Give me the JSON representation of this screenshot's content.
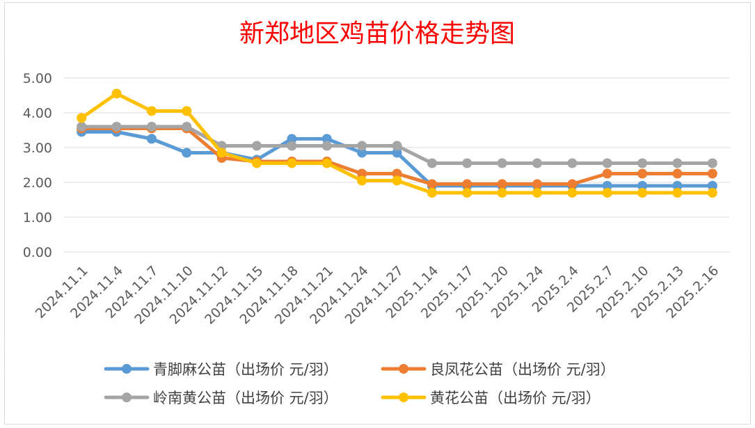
{
  "chart_data": {
    "type": "line",
    "title": "新郑地区鸡苗价格走势图",
    "xlabel": "",
    "ylabel": "",
    "ylim": [
      0,
      5
    ],
    "yticks": [
      "0.00",
      "1.00",
      "2.00",
      "3.00",
      "4.00",
      "5.00"
    ],
    "grid": true,
    "legend_position": "bottom",
    "categories": [
      "2024.11.1",
      "2024.11.4",
      "2024.11.7",
      "2024.11.10",
      "2024.11.12",
      "2024.11.15",
      "2024.11.18",
      "2024.11.21",
      "2024.11.24",
      "2024.11.27",
      "2025.1.14",
      "2025.1.17",
      "2025.1.20",
      "2025.1.24",
      "2025.2.4",
      "2025.2.7",
      "2025.2.10",
      "2025.2.13",
      "2025.2.16"
    ],
    "series": [
      {
        "name": "青脚麻公苗（出场价 元/羽）",
        "color": "#5b9bd5",
        "values": [
          3.45,
          3.45,
          3.25,
          2.85,
          2.85,
          2.65,
          3.25,
          3.25,
          2.85,
          2.85,
          1.9,
          1.9,
          1.9,
          1.9,
          1.9,
          1.9,
          1.9,
          1.9,
          1.9
        ]
      },
      {
        "name": "良凤花公苗（出场价 元/羽）",
        "color": "#ed7d31",
        "values": [
          3.55,
          3.55,
          3.55,
          3.55,
          2.7,
          2.6,
          2.6,
          2.6,
          2.25,
          2.25,
          1.95,
          1.95,
          1.95,
          1.95,
          1.95,
          2.25,
          2.25,
          2.25,
          2.25
        ]
      },
      {
        "name": "岭南黄公苗（出场价 元/羽）",
        "color": "#a5a5a5",
        "values": [
          3.6,
          3.6,
          3.6,
          3.6,
          3.05,
          3.05,
          3.05,
          3.05,
          3.05,
          3.05,
          2.55,
          2.55,
          2.55,
          2.55,
          2.55,
          2.55,
          2.55,
          2.55,
          2.55
        ]
      },
      {
        "name": "黄花公苗（出场价 元/羽）",
        "color": "#ffc000",
        "values": [
          3.85,
          4.55,
          4.05,
          4.05,
          2.85,
          2.55,
          2.55,
          2.55,
          2.05,
          2.05,
          1.7,
          1.7,
          1.7,
          1.7,
          1.7,
          1.7,
          1.7,
          1.7,
          1.7
        ]
      }
    ]
  }
}
